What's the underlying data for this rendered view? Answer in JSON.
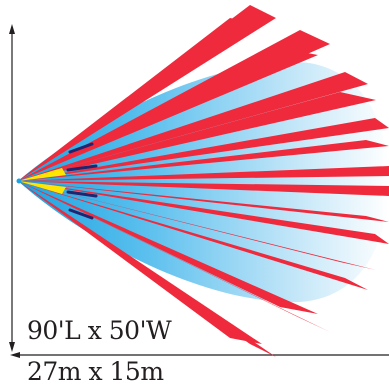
{
  "dimensions": {
    "imperial": "90'L x 50'W",
    "metric": "27m x 15m"
  },
  "colors": {
    "beam": "#ee2a3c",
    "zone_blue": "#1aa3e0",
    "zone_fade": "#ffffff",
    "core_yellow": "#ffe600",
    "marker": "#23246e",
    "line": "#231f20"
  }
}
